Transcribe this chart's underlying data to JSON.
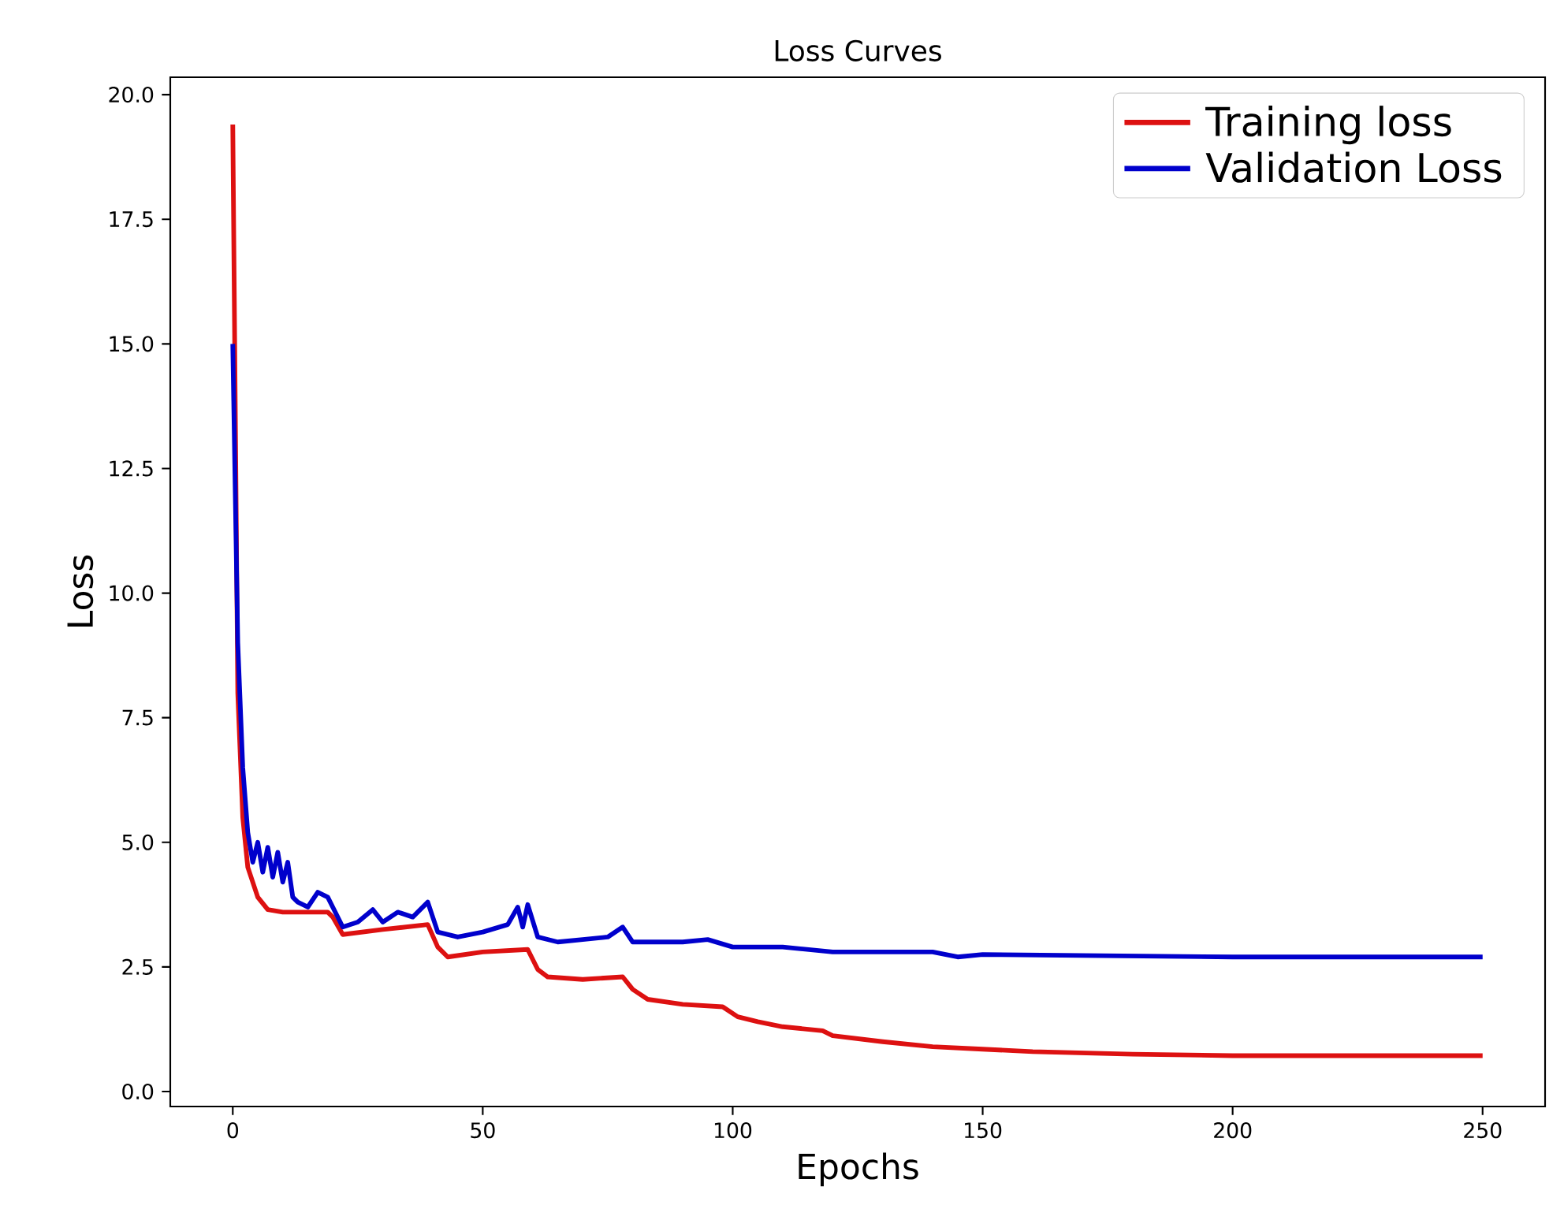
{
  "chart_data": {
    "type": "line",
    "title": "Loss Curves",
    "xlabel": "Epochs",
    "ylabel": "Loss",
    "xlim": [
      -12.5,
      262.5
    ],
    "ylim": [
      -0.3,
      20.35
    ],
    "xticks": [
      0,
      50,
      100,
      150,
      200,
      250
    ],
    "yticks": [
      {
        "value": 0,
        "label": "0.0"
      },
      {
        "value": 2.5,
        "label": "2.5"
      },
      {
        "value": 5,
        "label": "5.0"
      },
      {
        "value": 7.5,
        "label": "7.5"
      },
      {
        "value": 10,
        "label": "10.0"
      },
      {
        "value": 12.5,
        "label": "12.5"
      },
      {
        "value": 15,
        "label": "15.0"
      },
      {
        "value": 17.5,
        "label": "17.5"
      },
      {
        "value": 20,
        "label": "20.0"
      }
    ],
    "grid": false,
    "legend": "top right",
    "marker": "none",
    "line_style": "solid",
    "series": [
      {
        "name": "Training loss",
        "color": "#dd1111",
        "x": [
          0,
          1,
          2,
          3,
          5,
          7,
          10,
          15,
          19,
          20,
          22,
          30,
          39,
          41,
          43,
          50,
          59,
          61,
          63,
          70,
          78,
          80,
          83,
          90,
          98,
          101,
          105,
          110,
          118,
          120,
          130,
          140,
          150,
          160,
          180,
          200,
          250
        ],
        "values": [
          19.4,
          8,
          5.5,
          4.5,
          3.9,
          3.65,
          3.6,
          3.6,
          3.6,
          3.5,
          3.15,
          3.25,
          3.35,
          2.9,
          2.7,
          2.8,
          2.85,
          2.45,
          2.3,
          2.25,
          2.3,
          2.05,
          1.85,
          1.75,
          1.7,
          1.5,
          1.4,
          1.3,
          1.22,
          1.12,
          1.0,
          0.9,
          0.85,
          0.8,
          0.75,
          0.72,
          0.72
        ]
      },
      {
        "name": "Validation Loss",
        "color": "#0000cc",
        "x": [
          0,
          1,
          2,
          3,
          4,
          5,
          6,
          7,
          8,
          9,
          10,
          11,
          12,
          13,
          15,
          17,
          19,
          20,
          22,
          25,
          28,
          30,
          33,
          36,
          39,
          41,
          45,
          50,
          55,
          57,
          58,
          59,
          61,
          65,
          70,
          75,
          78,
          80,
          90,
          95,
          100,
          110,
          120,
          130,
          140,
          145,
          150,
          200,
          250
        ],
        "values": [
          15.0,
          9,
          6.5,
          5.2,
          4.6,
          5.0,
          4.4,
          4.9,
          4.3,
          4.8,
          4.2,
          4.6,
          3.9,
          3.8,
          3.7,
          4.0,
          3.9,
          3.7,
          3.3,
          3.4,
          3.65,
          3.4,
          3.6,
          3.5,
          3.8,
          3.2,
          3.1,
          3.2,
          3.35,
          3.7,
          3.3,
          3.75,
          3.1,
          3.0,
          3.05,
          3.1,
          3.3,
          3.0,
          3.0,
          3.05,
          2.9,
          2.9,
          2.8,
          2.8,
          2.8,
          2.7,
          2.75,
          2.7,
          2.7
        ]
      }
    ]
  }
}
